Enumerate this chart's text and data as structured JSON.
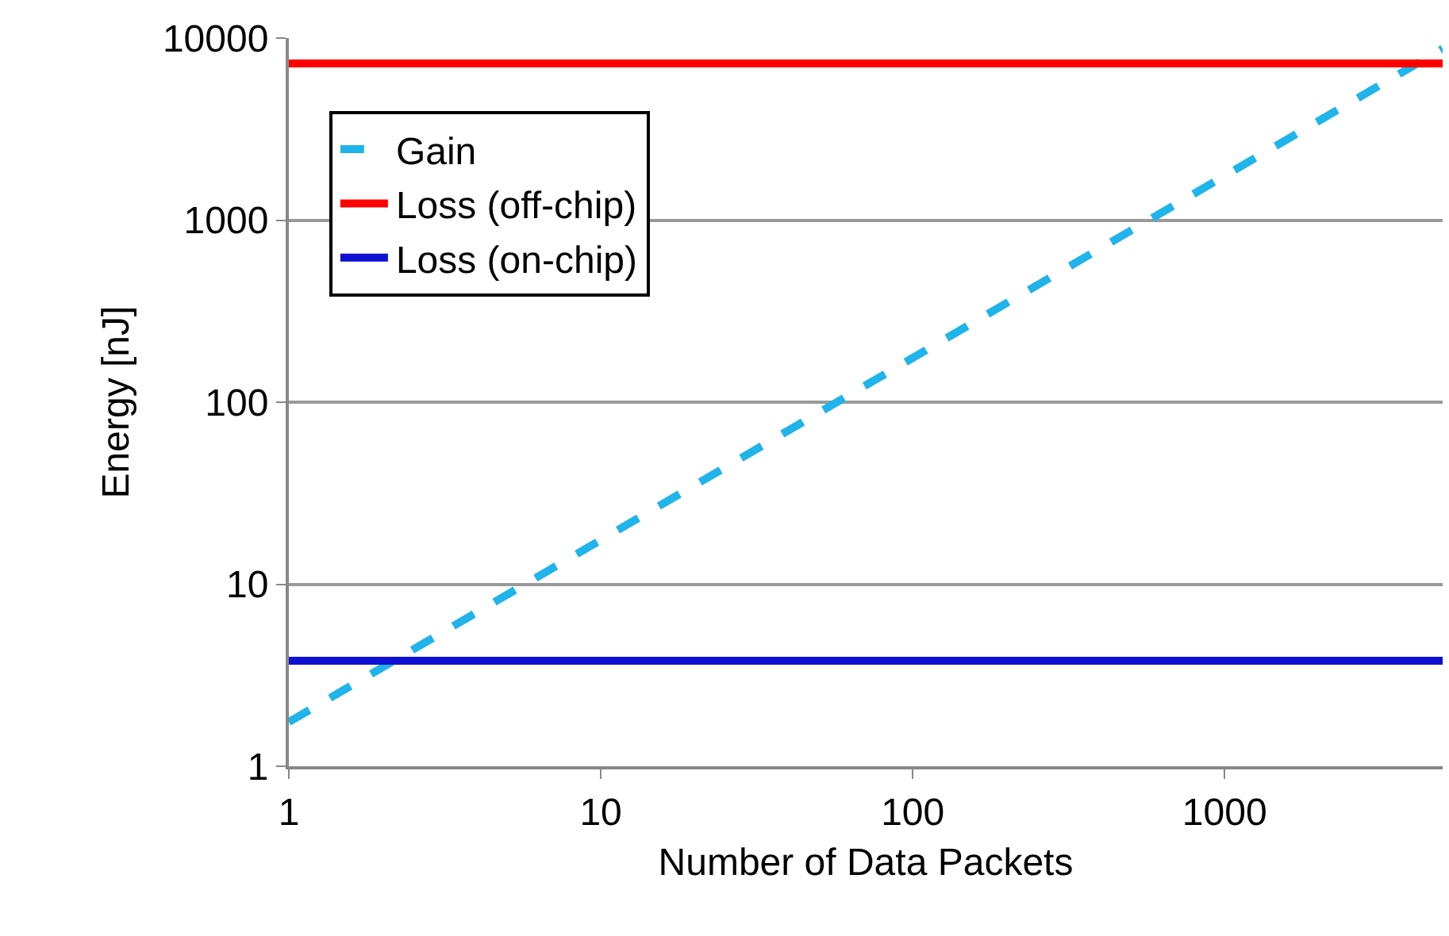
{
  "chart_data": {
    "type": "line",
    "xlabel": "Number of Data Packets",
    "ylabel": "Energy [nJ]",
    "x": [
      1,
      5000
    ],
    "series": [
      {
        "name": "Gain",
        "color": "#1fb4ea",
        "values": [
          1.75,
          8750
        ],
        "line_style": "dashed"
      },
      {
        "name": "Loss (off-chip)",
        "color": "#ff0000",
        "values": [
          7250,
          7250
        ],
        "line_style": "solid"
      },
      {
        "name": "Loss (on-chip)",
        "color": "#1010d0",
        "values": [
          3.8,
          3.8
        ],
        "line_style": "solid"
      }
    ],
    "log": "xy",
    "xlim": [
      1,
      5000
    ],
    "xticks": [
      1,
      10,
      100,
      1000
    ],
    "ylim": [
      1,
      10000
    ],
    "yticks": [
      1,
      10,
      100,
      1000,
      10000
    ],
    "grid": "y",
    "legend": "top left",
    "marker": "none"
  }
}
